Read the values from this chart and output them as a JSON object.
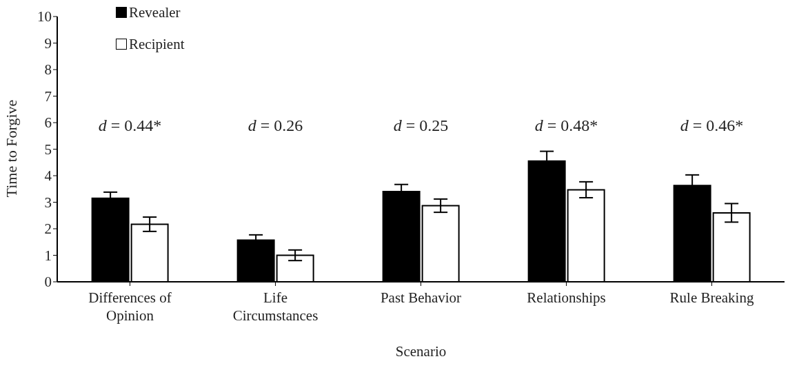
{
  "chart_data": {
    "type": "bar",
    "xlabel": "Scenario",
    "ylabel": "Time to Forgive",
    "categories": [
      "Differences of Opinion",
      "Life Circumstances",
      "Past Behavior",
      "Relationships",
      "Rule Breaking"
    ],
    "series": [
      {
        "name": "Revealer",
        "color": "#000000",
        "values": [
          3.15,
          1.57,
          3.4,
          4.55,
          3.63
        ],
        "errors": [
          0.23,
          0.2,
          0.27,
          0.37,
          0.4
        ]
      },
      {
        "name": "Recipient",
        "color": "#ffffff",
        "values": [
          2.17,
          1.0,
          2.87,
          3.47,
          2.6
        ],
        "errors": [
          0.27,
          0.2,
          0.25,
          0.3,
          0.35
        ]
      }
    ],
    "annotations": [
      "d = 0.44*",
      "d = 0.26",
      "d = 0.25",
      "d = 0.48*",
      "d = 0.46*"
    ],
    "ylim": [
      0,
      10
    ],
    "yticks": [
      0,
      1,
      2,
      3,
      4,
      5,
      6,
      7,
      8,
      9,
      10
    ],
    "grid": false,
    "legend": "top left"
  }
}
